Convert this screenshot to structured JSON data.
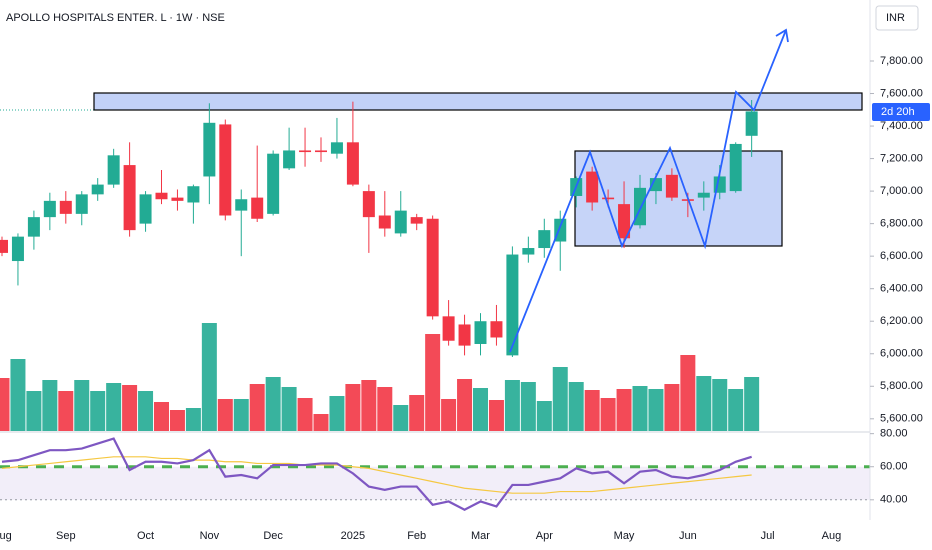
{
  "chart_data": {
    "type": "candlestick",
    "title": "APOLLO HOSPITALS ENTER. L · 1W · NSE",
    "currency": "INR",
    "countdown": "2d 20h",
    "up_color": "#22ab94",
    "down_color": "#f23645",
    "categories": [
      "Aug",
      null,
      null,
      null,
      "Sep",
      null,
      null,
      null,
      null,
      "Oct",
      null,
      null,
      null,
      "Nov",
      null,
      null,
      null,
      "Dec",
      null,
      null,
      null,
      null,
      "2025",
      null,
      null,
      null,
      "Feb",
      null,
      null,
      null,
      "Mar",
      null,
      null,
      null,
      "Apr",
      null,
      null,
      null,
      null,
      "May",
      null,
      null,
      null,
      "Jun",
      null,
      null,
      null,
      null,
      "Jul",
      null,
      null,
      null,
      "Aug"
    ],
    "open": [
      6700,
      6570,
      6720,
      6840,
      6940,
      6860,
      6980,
      7040,
      7160,
      6800,
      6990,
      6960,
      6930,
      7090,
      7410,
      6880,
      6960,
      6860,
      7140,
      7250,
      7250,
      7230,
      7300,
      7000,
      6850,
      6740,
      6840,
      6830,
      6230,
      6180,
      6060,
      6200,
      5990,
      6610,
      6650,
      6690,
      6970,
      7120,
      6960,
      6920,
      6790,
      7000,
      7100,
      6950,
      6960,
      6990,
      7000,
      7340,
      null,
      null,
      null,
      null,
      null
    ],
    "high": [
      6720,
      6740,
      6880,
      6990,
      7000,
      7000,
      7080,
      7260,
      7300,
      7000,
      7130,
      7010,
      7040,
      7540,
      7440,
      7010,
      7280,
      7250,
      7390,
      7390,
      7330,
      7450,
      7550,
      7040,
      7000,
      7000,
      6860,
      6850,
      6330,
      6240,
      6250,
      6300,
      6660,
      6720,
      6830,
      6880,
      7090,
      7150,
      7010,
      7060,
      7100,
      7110,
      7140,
      6990,
      7060,
      7160,
      7300,
      7560,
      null,
      null,
      null,
      null,
      null
    ],
    "low": [
      6600,
      6420,
      6640,
      6760,
      6800,
      6790,
      6940,
      7020,
      6720,
      6750,
      6920,
      6880,
      6800,
      6920,
      6820,
      6600,
      6810,
      6850,
      7130,
      7150,
      7180,
      7200,
      7030,
      6620,
      6720,
      6720,
      6760,
      6210,
      6050,
      5990,
      5990,
      6050,
      5980,
      6560,
      6590,
      6510,
      6900,
      6880,
      6900,
      6650,
      6770,
      6920,
      6940,
      6840,
      6880,
      6950,
      6990,
      7210,
      null,
      null,
      null,
      null,
      null
    ],
    "close": [
      6620,
      6720,
      6840,
      6940,
      6860,
      6980,
      7040,
      7220,
      6760,
      6980,
      6950,
      6940,
      7030,
      7420,
      6850,
      6950,
      6830,
      7230,
      7250,
      7240,
      7240,
      7300,
      7040,
      6840,
      6770,
      6880,
      6800,
      6230,
      6080,
      6050,
      6200,
      6100,
      6610,
      6650,
      6760,
      6830,
      7080,
      6930,
      6950,
      6710,
      7020,
      7080,
      6960,
      6940,
      6990,
      7090,
      7290,
      7490,
      null,
      null,
      null,
      null,
      null
    ],
    "volume": [
      53,
      72,
      40,
      51,
      40,
      51,
      40,
      48,
      46,
      40,
      29,
      21,
      23,
      108,
      32,
      32,
      47,
      54,
      44,
      33,
      17,
      35,
      47,
      51,
      44,
      26,
      36,
      97,
      32,
      52,
      43,
      31,
      51,
      49,
      30,
      64,
      49,
      41,
      33,
      42,
      45,
      42,
      47,
      76,
      55,
      52,
      42,
      54,
      null,
      null,
      null,
      null,
      null
    ],
    "volume_lim": [
      0,
      430
    ],
    "ylim": [
      5525,
      8175
    ],
    "yticks": [
      {
        "value": 5600,
        "label": "5,600.00"
      },
      {
        "value": 5800,
        "label": "5,800.00"
      },
      {
        "value": 6000,
        "label": "6,000.00"
      },
      {
        "value": 6200,
        "label": "6,200.00"
      },
      {
        "value": 6400,
        "label": "6,400.00"
      },
      {
        "value": 6600,
        "label": "6,600.00"
      },
      {
        "value": 6800,
        "label": "6,800.00"
      },
      {
        "value": 7000,
        "label": "7,000.00"
      },
      {
        "value": 7200,
        "label": "7,200.00"
      },
      {
        "value": 7400,
        "label": "7,400.00"
      },
      {
        "value": 7600,
        "label": "7,600.00"
      },
      {
        "value": 7800,
        "label": "7,800.00"
      }
    ],
    "rsi": [
      63,
      64,
      67,
      70,
      70,
      71,
      74,
      77,
      58,
      63,
      63,
      62,
      64,
      70,
      54,
      55,
      53,
      61,
      61,
      61,
      62,
      62,
      56,
      48,
      46,
      48,
      48,
      37,
      39,
      34,
      39,
      36,
      49,
      49,
      51,
      53,
      59,
      56,
      57,
      50,
      57,
      58,
      54,
      53,
      55,
      58,
      63,
      66,
      null,
      null,
      null,
      null,
      null
    ],
    "rsi_ma": [
      59,
      60,
      61,
      62,
      63,
      64,
      65,
      66,
      66,
      66,
      65,
      65,
      64,
      64,
      63,
      63,
      62,
      62,
      62,
      61,
      61,
      61,
      60,
      59,
      57,
      55,
      53,
      51,
      49,
      47,
      46,
      45,
      44,
      44,
      44,
      45,
      45,
      45,
      46,
      47,
      48,
      49,
      50,
      51,
      52,
      53,
      54,
      55,
      null,
      null,
      null,
      null,
      null
    ],
    "rsi_color": "#7e57c2",
    "rsi_ma_color": "#f5c842",
    "rsi_lim": [
      29,
      81
    ],
    "rsi_yticks": [
      {
        "value": 40,
        "label": "40.00"
      },
      {
        "value": 60,
        "label": "60.00"
      },
      {
        "value": 80,
        "label": "80.00"
      }
    ]
  }
}
